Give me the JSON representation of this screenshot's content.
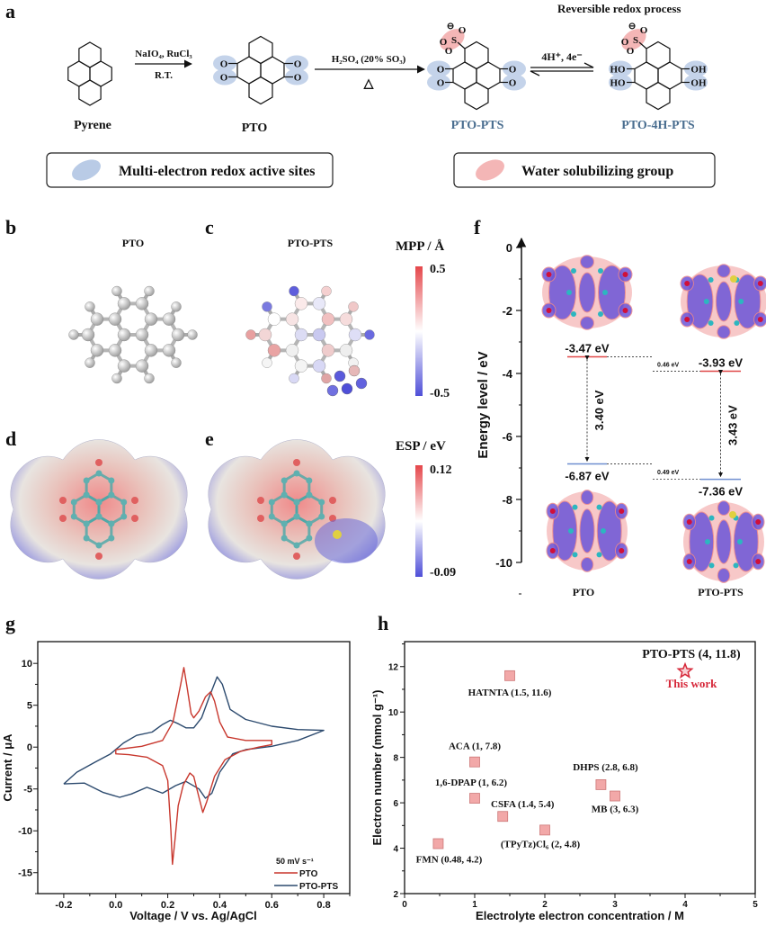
{
  "panel_labels": {
    "a": "a",
    "b": "b",
    "c": "c",
    "d": "d",
    "e": "e",
    "f": "f",
    "g": "g",
    "h": "h"
  },
  "scheme": {
    "title": "Reversible redox process",
    "step1_reagents": "NaIO₄, RuCl₃",
    "step1_conditions": "R.T.",
    "step2_reagents": "H₂SO₄ (20% SO₃)",
    "step2_conditions": "△",
    "step3_reagents": "4H⁺, 4e⁻",
    "compounds": [
      "Pyrene",
      "PTO",
      "PTO-PTS",
      "PTO-4H-PTS"
    ],
    "atoms": {
      "O": "O",
      "HO": "HO",
      "OH": "OH",
      "S": "S",
      "minus": "⊖"
    },
    "legend": [
      {
        "label": "Multi-electron redox active sites",
        "color": "#b9cbe6"
      },
      {
        "label": "Water solubilizing group",
        "color": "#f4b6b6"
      }
    ]
  },
  "mpp": {
    "b_title": "PTO",
    "c_title": "PTO-PTS",
    "colorbar_title": "MPP / Å",
    "max_label": "0.5",
    "min_label": "-0.5",
    "colors": {
      "high": "#e5474b",
      "mid": "#ffffff",
      "low": "#4f4fd8"
    }
  },
  "esp": {
    "colorbar_title": "ESP / eV",
    "max_label": "0.12",
    "min_label": "-0.09"
  },
  "energy_diagram": {
    "ylabel": "Energy level / eV",
    "yticks": [
      "0",
      "-2",
      "-4",
      "-6",
      "-8",
      "-10"
    ],
    "ylim": [
      -10,
      0
    ],
    "molecules": [
      {
        "name": "PTO",
        "lumo": -3.47,
        "homo": -6.87,
        "lumo_label": "-3.47 eV",
        "homo_label": "-6.87 eV",
        "gap_label": "3.40 eV"
      },
      {
        "name": "PTO-PTS",
        "lumo": -3.93,
        "homo": -7.36,
        "lumo_label": "-3.93 eV",
        "homo_label": "-7.36 eV",
        "gap_label": "3.43 eV"
      }
    ],
    "lumo_shift_label": "0.46 eV",
    "homo_shift_label": "0.49 eV"
  },
  "chart_data": [
    {
      "type": "line",
      "title": "",
      "xlabel": "Voltage / V vs. Ag/AgCl",
      "ylabel": "Current / μA",
      "xlim": [
        -0.3,
        0.9
      ],
      "ylim": [
        -17.5,
        12.6
      ],
      "xticks": [
        -0.2,
        0.0,
        0.2,
        0.4,
        0.6,
        0.8
      ],
      "xtick_labels": [
        "-0.2",
        "0.0",
        "0.2",
        "0.4",
        "0.6",
        "0.8"
      ],
      "yticks": [
        10,
        5,
        0,
        -5,
        -10,
        -15
      ],
      "ytick_labels": [
        "10",
        "5",
        "0",
        "-5",
        "-10",
        "-15"
      ],
      "legend_title": "50 mV s⁻¹",
      "legend_position": "bottom-right",
      "series": [
        {
          "name": "PTO",
          "color": "#c8372d",
          "points": [
            [
              0,
              -0.3
            ],
            [
              0.1,
              0.1
            ],
            [
              0.18,
              0.8
            ],
            [
              0.22,
              3
            ],
            [
              0.25,
              7.5
            ],
            [
              0.262,
              9.5
            ],
            [
              0.275,
              7
            ],
            [
              0.29,
              4
            ],
            [
              0.3,
              3.5
            ],
            [
              0.32,
              4.3
            ],
            [
              0.345,
              6
            ],
            [
              0.365,
              6.6
            ],
            [
              0.38,
              5.5
            ],
            [
              0.4,
              3
            ],
            [
              0.43,
              1.2
            ],
            [
              0.5,
              0.8
            ],
            [
              0.6,
              0.8
            ],
            [
              0.6,
              0.3
            ],
            [
              0.55,
              0
            ],
            [
              0.48,
              -0.5
            ],
            [
              0.42,
              -1.5
            ],
            [
              0.38,
              -3.5
            ],
            [
              0.35,
              -6.5
            ],
            [
              0.335,
              -7.8
            ],
            [
              0.32,
              -6
            ],
            [
              0.3,
              -3.5
            ],
            [
              0.285,
              -3.1
            ],
            [
              0.26,
              -4.5
            ],
            [
              0.24,
              -7
            ],
            [
              0.228,
              -11
            ],
            [
              0.218,
              -14
            ],
            [
              0.212,
              -10
            ],
            [
              0.2,
              -4
            ],
            [
              0.18,
              -2.2
            ],
            [
              0.12,
              -1.2
            ],
            [
              0.05,
              -0.9
            ],
            [
              0,
              -0.8
            ],
            [
              0,
              -0.3
            ]
          ]
        },
        {
          "name": "PTO-PTS",
          "color": "#2c4a6e",
          "points": [
            [
              -0.2,
              -4.4
            ],
            [
              -0.15,
              -3
            ],
            [
              -0.08,
              -1.8
            ],
            [
              -0.02,
              -0.8
            ],
            [
              0.03,
              0.5
            ],
            [
              0.08,
              1.4
            ],
            [
              0.14,
              1.8
            ],
            [
              0.18,
              2.7
            ],
            [
              0.21,
              3.2
            ],
            [
              0.24,
              2.8
            ],
            [
              0.27,
              2.3
            ],
            [
              0.3,
              2.3
            ],
            [
              0.33,
              3.5
            ],
            [
              0.36,
              6
            ],
            [
              0.39,
              8.4
            ],
            [
              0.41,
              7.5
            ],
            [
              0.44,
              4.5
            ],
            [
              0.5,
              3.3
            ],
            [
              0.6,
              2.5
            ],
            [
              0.7,
              2.1
            ],
            [
              0.8,
              2.0
            ],
            [
              0.7,
              0.8
            ],
            [
              0.6,
              0.1
            ],
            [
              0.5,
              -0.3
            ],
            [
              0.45,
              -0.8
            ],
            [
              0.4,
              -3
            ],
            [
              0.37,
              -5.5
            ],
            [
              0.345,
              -6.1
            ],
            [
              0.32,
              -5
            ],
            [
              0.27,
              -4.1
            ],
            [
              0.23,
              -4.6
            ],
            [
              0.18,
              -5.5
            ],
            [
              0.12,
              -4.8
            ],
            [
              0.06,
              -5.6
            ],
            [
              0.015,
              -6
            ],
            [
              -0.05,
              -5.4
            ],
            [
              -0.12,
              -4.3
            ],
            [
              -0.2,
              -4.4
            ]
          ]
        }
      ]
    },
    {
      "type": "scatter",
      "title": "",
      "xlabel": "Electrolyte electron concentration / M",
      "ylabel": "Electron number (mmol g⁻¹)",
      "xlim": [
        0,
        5
      ],
      "ylim": [
        2,
        13.1
      ],
      "xticks": [
        0,
        1,
        2,
        3,
        4,
        5
      ],
      "xtick_labels": [
        "0",
        "1",
        "2",
        "3",
        "4",
        "5"
      ],
      "yticks": [
        2,
        4,
        6,
        8,
        10,
        12
      ],
      "ytick_labels": [
        "2",
        "4",
        "6",
        "8",
        "10",
        "12"
      ],
      "points": [
        {
          "label": "HATNTA (1.5, 11.6)",
          "x": 1.5,
          "y": 11.6
        },
        {
          "label": "ACA (1, 7.8)",
          "x": 1,
          "y": 7.8
        },
        {
          "label": "1,6-DPAP (1, 6.2)",
          "x": 1,
          "y": 6.2
        },
        {
          "label": "CSFA (1.4, 5.4)",
          "x": 1.4,
          "y": 5.4
        },
        {
          "label": "(TPyTz)Cl₆ (2, 4.8)",
          "x": 2,
          "y": 4.8
        },
        {
          "label": "DHPS (2.8, 6.8)",
          "x": 2.8,
          "y": 6.8
        },
        {
          "label": "MB (3, 6.3)",
          "x": 3,
          "y": 6.3
        },
        {
          "label": "FMN (0.48, 4.2)",
          "x": 0.48,
          "y": 4.2
        }
      ],
      "highlight": {
        "label": "PTO-PTS (4, 11.8)",
        "note": "This work",
        "x": 4,
        "y": 11.8,
        "color": "#d6283a"
      },
      "marker_color": "#f2a8a8"
    }
  ]
}
